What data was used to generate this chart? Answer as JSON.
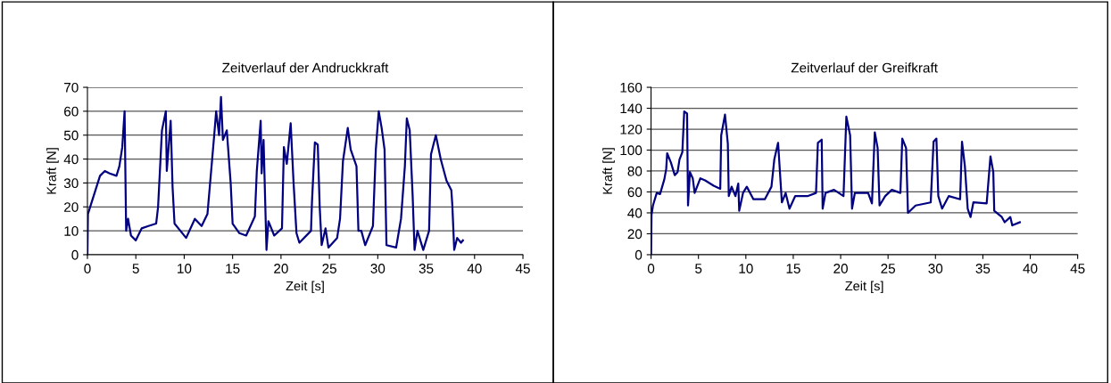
{
  "chart_data": [
    {
      "type": "line",
      "title": "Zeitverlauf der Andruckkraft",
      "xlabel": "Zeit [s]",
      "ylabel": "Kraft [N]",
      "xlim": [
        0,
        45
      ],
      "xticks": [
        0,
        5,
        10,
        15,
        20,
        25,
        30,
        35,
        40,
        45
      ],
      "ylim": [
        0,
        70
      ],
      "yticks": [
        0,
        10,
        20,
        30,
        40,
        50,
        60,
        70
      ],
      "grid": "y",
      "marker": "none",
      "line_style": "solid",
      "series": [
        {
          "color": "#000080",
          "x": [
            0,
            0.05,
            1.3,
            1.8,
            2.3,
            3.0,
            3.3,
            3.6,
            3.84,
            4.0,
            4.2,
            4.5,
            5.0,
            5.6,
            6.3,
            7.1,
            7.3,
            7.7,
            8.1,
            8.2,
            8.6,
            8.8,
            9.0,
            10.2,
            11.1,
            11.8,
            12.4,
            13.1,
            13.3,
            13.6,
            13.8,
            14.0,
            14.4,
            14.8,
            15.0,
            15.7,
            16.4,
            17.3,
            17.5,
            17.9,
            18.0,
            18.2,
            18.5,
            18.7,
            19.3,
            20.1,
            20.3,
            20.6,
            21.0,
            21.3,
            21.6,
            21.9,
            23.1,
            23.2,
            23.5,
            23.8,
            24.0,
            24.2,
            24.6,
            24.9,
            25.8,
            26.1,
            26.4,
            26.9,
            27.2,
            27.8,
            28.0,
            28.3,
            28.7,
            29.5,
            29.8,
            30.1,
            30.4,
            30.7,
            30.9,
            31.9,
            32.4,
            32.8,
            33.0,
            33.3,
            33.6,
            33.8,
            34.1,
            34.7,
            35.3,
            35.5,
            36.0,
            36.5,
            37.1,
            37.6,
            37.7,
            37.9,
            38.2,
            38.6,
            38.8
          ],
          "values": [
            0,
            17,
            33,
            35,
            34,
            33,
            37,
            45,
            60,
            10,
            15,
            8,
            6,
            11,
            12,
            13,
            20,
            52,
            60,
            35,
            56,
            28,
            13,
            7,
            15,
            12,
            17,
            50,
            60,
            50,
            66,
            48,
            52,
            30,
            13,
            9,
            8,
            16,
            35,
            56,
            34,
            48,
            2,
            14,
            8,
            11,
            45,
            38,
            55,
            30,
            9,
            5,
            10,
            22,
            47,
            46,
            20,
            4,
            11,
            3,
            7,
            15,
            39,
            53,
            44,
            37,
            10,
            10,
            4,
            12,
            44,
            60,
            53,
            44,
            4,
            3,
            15,
            37,
            57,
            52,
            25,
            2,
            10,
            2,
            10,
            42,
            50,
            40,
            31,
            27,
            21,
            2,
            7,
            5,
            6
          ]
        }
      ]
    },
    {
      "type": "line",
      "title": "Zeitverlauf der Greifkraft",
      "xlabel": "Zeit [s]",
      "ylabel": "Kraft [N]",
      "xlim": [
        0,
        45
      ],
      "xticks": [
        0,
        5,
        10,
        15,
        20,
        25,
        30,
        35,
        40,
        45
      ],
      "ylim": [
        0,
        160
      ],
      "yticks": [
        0,
        20,
        40,
        60,
        80,
        100,
        120,
        140,
        160
      ],
      "grid": "y",
      "marker": "none",
      "line_style": "solid",
      "series": [
        {
          "color": "#000080",
          "x": [
            0,
            0.05,
            0.2,
            0.6,
            0.95,
            1.4,
            1.6,
            1.7,
            2.1,
            2.5,
            2.8,
            3.0,
            3.3,
            3.5,
            3.8,
            3.9,
            4.1,
            4.4,
            4.6,
            5.2,
            5.7,
            6.6,
            7.3,
            7.4,
            7.8,
            8.1,
            8.2,
            8.5,
            8.9,
            9.2,
            9.3,
            9.7,
            10.1,
            10.8,
            12.0,
            12.7,
            13.0,
            13.4,
            13.8,
            14.2,
            14.6,
            15.2,
            16.5,
            17.4,
            17.6,
            18.0,
            18.1,
            18.4,
            19.3,
            20.3,
            20.6,
            21.0,
            21.2,
            21.5,
            22.9,
            23.3,
            23.6,
            23.9,
            24.1,
            24.7,
            25.4,
            26.3,
            26.5,
            26.9,
            27.1,
            27.9,
            29.5,
            29.8,
            30.1,
            30.3,
            30.7,
            31.4,
            32.6,
            32.8,
            33.1,
            33.4,
            33.7,
            34.0,
            35.4,
            35.8,
            36.1,
            36.2,
            37.0,
            37.3,
            37.9,
            38.1,
            38.9
          ],
          "values": [
            0,
            38,
            47,
            59,
            58,
            72,
            82,
            97,
            88,
            76,
            79,
            91,
            98,
            137,
            135,
            47,
            79,
            73,
            59,
            73,
            71,
            66,
            63,
            114,
            134,
            106,
            56,
            65,
            56,
            68,
            42,
            59,
            65,
            53,
            53,
            65,
            91,
            107,
            50,
            59,
            44,
            56,
            56,
            59,
            107,
            110,
            44,
            59,
            62,
            56,
            132,
            114,
            44,
            59,
            59,
            49,
            117,
            102,
            47,
            56,
            62,
            59,
            111,
            102,
            40,
            47,
            50,
            108,
            111,
            56,
            44,
            56,
            53,
            108,
            85,
            44,
            36,
            50,
            49,
            94,
            79,
            42,
            36,
            31,
            36,
            28,
            31
          ]
        }
      ]
    }
  ]
}
